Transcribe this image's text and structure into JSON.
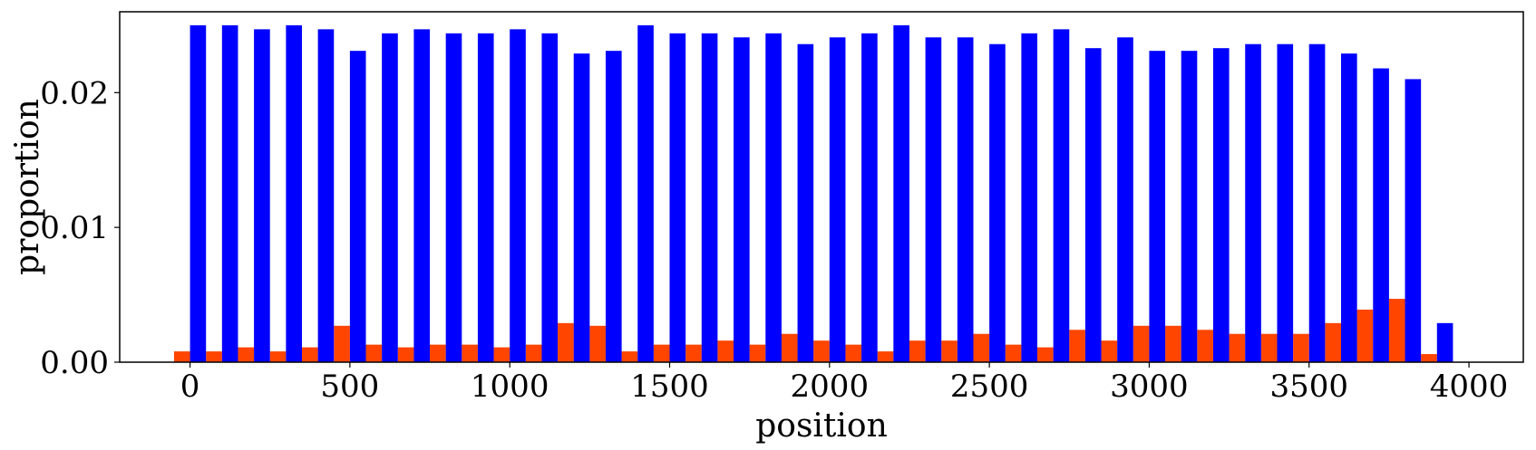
{
  "chart_data": {
    "type": "bar",
    "xlabel": "position",
    "ylabel": "proportion",
    "xlim": [
      -220,
      4170
    ],
    "ylim": [
      0,
      0.026
    ],
    "bin_width": 100,
    "x_ticks": [
      0,
      500,
      1000,
      1500,
      2000,
      2500,
      3000,
      3500,
      4000
    ],
    "x_tick_labels": [
      "0",
      "500",
      "1000",
      "1500",
      "2000",
      "2500",
      "3000",
      "3500",
      "4000"
    ],
    "y_ticks": [
      0,
      0.01,
      0.02
    ],
    "y_tick_labels": [
      "0.00",
      "0.01",
      "0.02"
    ],
    "grid": false,
    "x": [
      0,
      100,
      200,
      300,
      400,
      500,
      600,
      700,
      800,
      900,
      1000,
      1100,
      1200,
      1300,
      1400,
      1500,
      1600,
      1700,
      1800,
      1900,
      2000,
      2100,
      2200,
      2300,
      2400,
      2500,
      2600,
      2700,
      2800,
      2900,
      3000,
      3100,
      3200,
      3300,
      3400,
      3500,
      3600,
      3700,
      3800,
      3900
    ],
    "series": [
      {
        "color": "#ff4500",
        "values": [
          0.0008,
          0.0008,
          0.0011,
          0.0008,
          0.0011,
          0.0027,
          0.0013,
          0.0011,
          0.0013,
          0.0013,
          0.0011,
          0.0013,
          0.0029,
          0.0027,
          0.0008,
          0.0013,
          0.0013,
          0.0016,
          0.0013,
          0.0021,
          0.0016,
          0.0013,
          0.0008,
          0.0016,
          0.0016,
          0.0021,
          0.0013,
          0.0011,
          0.0024,
          0.0016,
          0.0027,
          0.0027,
          0.0024,
          0.0021,
          0.0021,
          0.0021,
          0.0029,
          0.0039,
          0.0047,
          0.0006
        ]
      },
      {
        "color": "#0000ff",
        "values": [
          0.025,
          0.025,
          0.0247,
          0.025,
          0.0247,
          0.0231,
          0.0244,
          0.0247,
          0.0244,
          0.0244,
          0.0247,
          0.0244,
          0.0229,
          0.0231,
          0.025,
          0.0244,
          0.0244,
          0.0241,
          0.0244,
          0.0236,
          0.0241,
          0.0244,
          0.025,
          0.0241,
          0.0241,
          0.0236,
          0.0244,
          0.0247,
          0.0233,
          0.0241,
          0.0231,
          0.0231,
          0.0233,
          0.0236,
          0.0236,
          0.0236,
          0.0229,
          0.0218,
          0.021,
          0.0029
        ]
      }
    ]
  }
}
